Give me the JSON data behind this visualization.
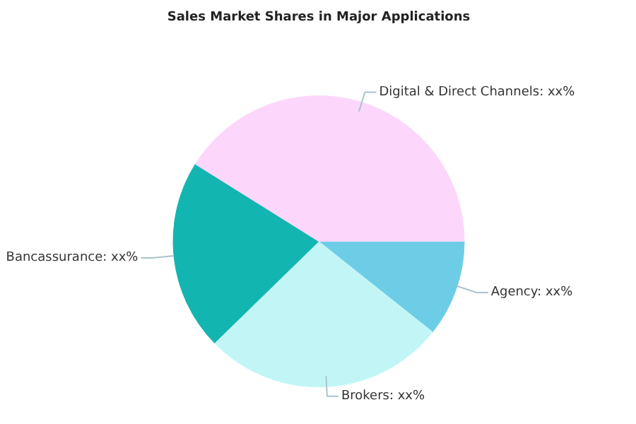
{
  "chart_data": {
    "type": "pie",
    "title": "Sales Market Shares in Major Applications",
    "categories": [
      "Agency",
      "Brokers",
      "Bancassurance",
      "Digital & Direct Channels"
    ],
    "values": [
      10.7,
      27.0,
      21.2,
      41.1
    ],
    "colors": [
      "#6ecde6",
      "#c2f6f6",
      "#13b5b1",
      "#fcd7fb"
    ],
    "value_labels": [
      "xx%",
      "xx%",
      "xx%",
      "xx%"
    ],
    "legend": false
  }
}
